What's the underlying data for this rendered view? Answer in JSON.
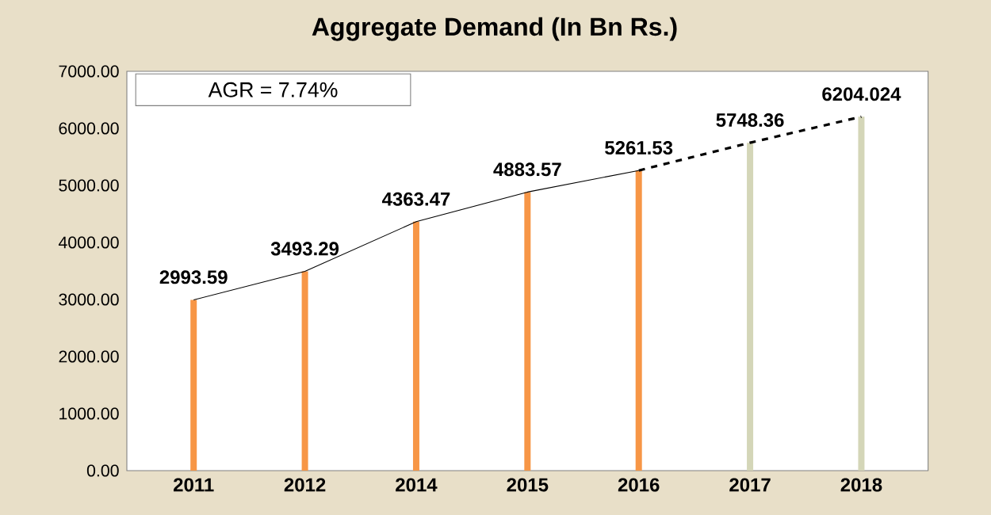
{
  "chart_data": {
    "type": "bar",
    "title": "Aggregate Demand (In Bn Rs.)",
    "categories": [
      "2011",
      "2012",
      "2014",
      "2015",
      "2016",
      "2017",
      "2018"
    ],
    "series": [
      {
        "colors": [
          "#f79646",
          "#f79646",
          "#f79646",
          "#f79646",
          "#f79646",
          "#d4d6b8",
          "#d4d6b8"
        ],
        "values": [
          2993.59,
          3493.29,
          4363.47,
          4883.57,
          5261.53,
          5748.36,
          6204.024
        ],
        "value_labels": [
          "2993.59",
          "3493.29",
          "4363.47",
          "4883.57",
          "5261.53",
          "5748.36",
          "6204.024"
        ]
      },
      {
        "type": "line",
        "color": "#000000",
        "line_style": "solid",
        "values": [
          2993.59,
          3493.29,
          4363.47,
          4883.57,
          5261.53,
          null,
          null
        ]
      },
      {
        "type": "line",
        "color": "#000000",
        "line_style": "dashed",
        "values": [
          null,
          null,
          null,
          null,
          5261.53,
          5748.36,
          6204.024
        ]
      }
    ],
    "ylim": [
      0,
      7000
    ],
    "yticks": [
      {
        "value": 0,
        "label": "0.00"
      },
      {
        "value": 1000,
        "label": "1000.00"
      },
      {
        "value": 2000,
        "label": "2000.00"
      },
      {
        "value": 3000,
        "label": "3000.00"
      },
      {
        "value": 4000,
        "label": "4000.00"
      },
      {
        "value": 5000,
        "label": "5000.00"
      },
      {
        "value": 6000,
        "label": "6000.00"
      },
      {
        "value": 7000,
        "label": "7000.00"
      }
    ],
    "annotations": [
      "AGR = 7.74%"
    ],
    "grid": false
  }
}
